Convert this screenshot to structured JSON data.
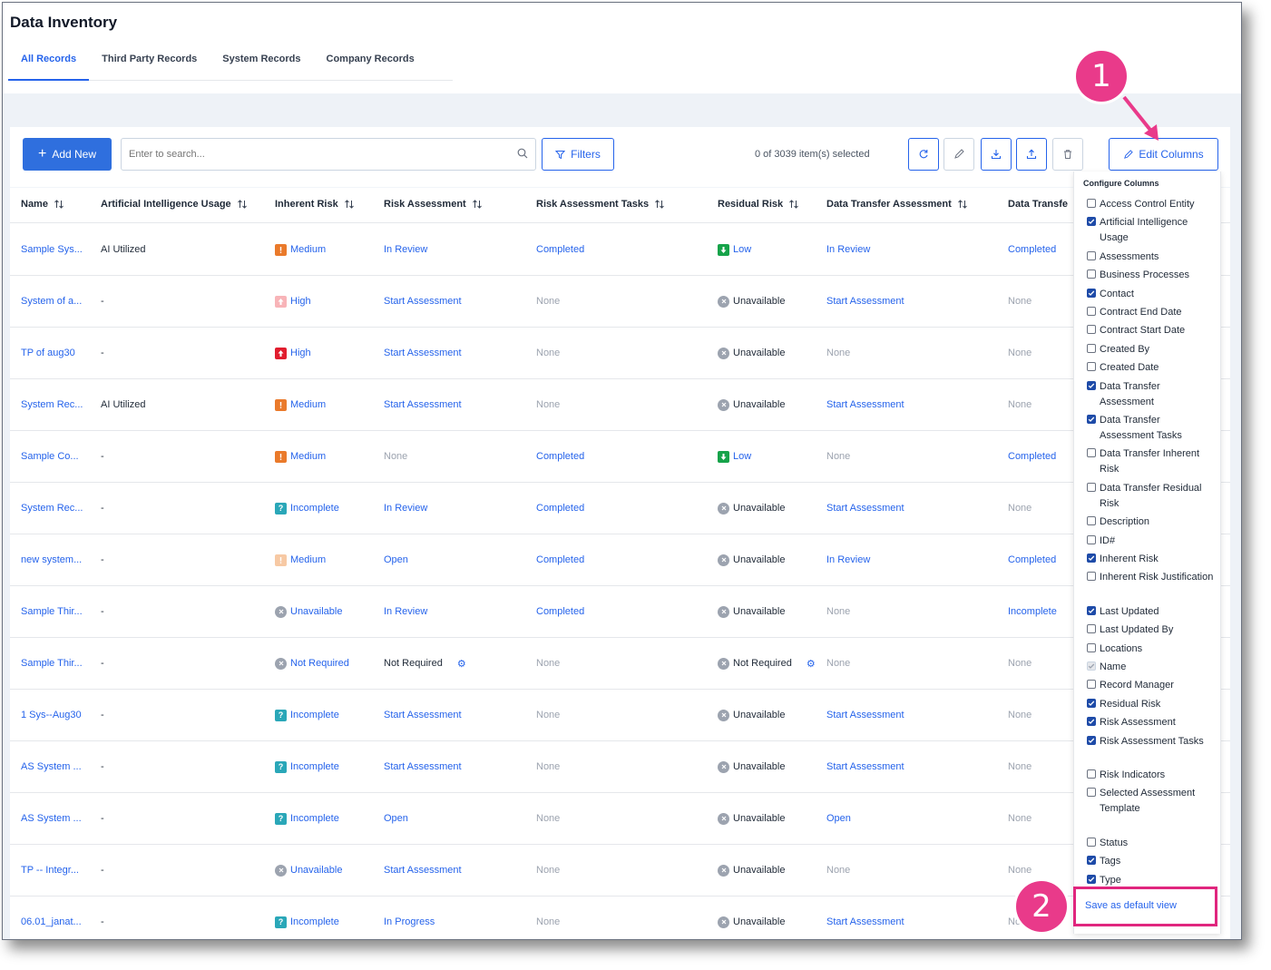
{
  "page": {
    "title": "Data Inventory"
  },
  "tabs": [
    {
      "label": "All Records",
      "active": true
    },
    {
      "label": "Third Party Records",
      "active": false
    },
    {
      "label": "System Records",
      "active": false
    },
    {
      "label": "Company Records",
      "active": false
    }
  ],
  "toolbar": {
    "add_new_label": "Add New",
    "search_placeholder": "Enter to search...",
    "filters_label": "Filters",
    "selection_text": "0 of 3039 item(s) selected",
    "icon_buttons": [
      "refresh-icon",
      "pencil-icon",
      "download-icon",
      "upload-icon",
      "trash-icon"
    ],
    "edit_columns_label": "Edit Columns"
  },
  "columns": [
    "Name",
    "Artificial Intelligence Usage",
    "Inherent Risk",
    "Risk Assessment",
    "Risk Assessment Tasks",
    "Residual Risk",
    "Data Transfer Assessment",
    "Data Transfe"
  ],
  "rows": [
    {
      "name": "Sample Sys...",
      "ai": "AI Utilized",
      "inherent": {
        "label": "Medium",
        "icon": "medium"
      },
      "ra": {
        "label": "In Review",
        "kind": "link"
      },
      "tasks": {
        "label": "Completed",
        "kind": "link"
      },
      "residual": {
        "label": "Low",
        "icon": "low"
      },
      "dta": {
        "label": "In Review",
        "kind": "link"
      },
      "dt": {
        "label": "Completed",
        "kind": "link"
      }
    },
    {
      "name": "System of a...",
      "ai": "-",
      "inherent": {
        "label": "High",
        "icon": "high-light"
      },
      "ra": {
        "label": "Start Assessment",
        "kind": "link"
      },
      "tasks": {
        "label": "None",
        "kind": "muted"
      },
      "residual": {
        "label": "Unavailable",
        "icon": "unavailable"
      },
      "dta": {
        "label": "Start Assessment",
        "kind": "link"
      },
      "dt": {
        "label": "None",
        "kind": "muted"
      }
    },
    {
      "name": "TP of aug30",
      "ai": "-",
      "inherent": {
        "label": "High",
        "icon": "high"
      },
      "ra": {
        "label": "Start Assessment",
        "kind": "link"
      },
      "tasks": {
        "label": "None",
        "kind": "muted"
      },
      "residual": {
        "label": "Unavailable",
        "icon": "unavailable"
      },
      "dta": {
        "label": "None",
        "kind": "muted"
      },
      "dt": {
        "label": "None",
        "kind": "muted"
      }
    },
    {
      "name": "System Rec...",
      "ai": "AI Utilized",
      "inherent": {
        "label": "Medium",
        "icon": "medium"
      },
      "ra": {
        "label": "Start Assessment",
        "kind": "link"
      },
      "tasks": {
        "label": "None",
        "kind": "muted"
      },
      "residual": {
        "label": "Unavailable",
        "icon": "unavailable"
      },
      "dta": {
        "label": "Start Assessment",
        "kind": "link"
      },
      "dt": {
        "label": "None",
        "kind": "muted"
      }
    },
    {
      "name": "Sample Co...",
      "ai": "-",
      "inherent": {
        "label": "Medium",
        "icon": "medium"
      },
      "ra": {
        "label": "None",
        "kind": "muted"
      },
      "tasks": {
        "label": "Completed",
        "kind": "link"
      },
      "residual": {
        "label": "Low",
        "icon": "low"
      },
      "dta": {
        "label": "None",
        "kind": "muted"
      },
      "dt": {
        "label": "Completed",
        "kind": "link"
      }
    },
    {
      "name": "System Rec...",
      "ai": "-",
      "inherent": {
        "label": "Incomplete",
        "icon": "incomplete"
      },
      "ra": {
        "label": "In Review",
        "kind": "link"
      },
      "tasks": {
        "label": "Completed",
        "kind": "link"
      },
      "residual": {
        "label": "Unavailable",
        "icon": "unavailable"
      },
      "dta": {
        "label": "Start Assessment",
        "kind": "link"
      },
      "dt": {
        "label": "None",
        "kind": "muted"
      }
    },
    {
      "name": "new system...",
      "ai": "-",
      "inherent": {
        "label": "Medium",
        "icon": "medium-light"
      },
      "ra": {
        "label": "Open",
        "kind": "link"
      },
      "tasks": {
        "label": "Completed",
        "kind": "link"
      },
      "residual": {
        "label": "Unavailable",
        "icon": "unavailable"
      },
      "dta": {
        "label": "In Review",
        "kind": "link"
      },
      "dt": {
        "label": "Completed",
        "kind": "link"
      }
    },
    {
      "name": "Sample Thir...",
      "ai": "-",
      "inherent": {
        "label": "Unavailable",
        "icon": "unavailable"
      },
      "ra": {
        "label": "In Review",
        "kind": "link"
      },
      "tasks": {
        "label": "Completed",
        "kind": "link"
      },
      "residual": {
        "label": "Unavailable",
        "icon": "unavailable"
      },
      "dta": {
        "label": "None",
        "kind": "muted"
      },
      "dt": {
        "label": "Incomplete",
        "kind": "link"
      }
    },
    {
      "name": "Sample Thir...",
      "ai": "-",
      "inherent": {
        "label": "Not Required",
        "icon": "unavailable"
      },
      "ra": {
        "label": "Not Required",
        "kind": "plain",
        "gear": true
      },
      "tasks": {
        "label": "None",
        "kind": "muted"
      },
      "residual": {
        "label": "Not Required",
        "icon": "unavailable",
        "gear": true
      },
      "dta": {
        "label": "None",
        "kind": "muted"
      },
      "dt": {
        "label": "None",
        "kind": "muted"
      }
    },
    {
      "name": "1 Sys--Aug30",
      "ai": "-",
      "inherent": {
        "label": "Incomplete",
        "icon": "incomplete"
      },
      "ra": {
        "label": "Start Assessment",
        "kind": "link"
      },
      "tasks": {
        "label": "None",
        "kind": "muted"
      },
      "residual": {
        "label": "Unavailable",
        "icon": "unavailable"
      },
      "dta": {
        "label": "Start Assessment",
        "kind": "link"
      },
      "dt": {
        "label": "None",
        "kind": "muted"
      }
    },
    {
      "name": "AS System ...",
      "ai": "-",
      "inherent": {
        "label": "Incomplete",
        "icon": "incomplete"
      },
      "ra": {
        "label": "Start Assessment",
        "kind": "link"
      },
      "tasks": {
        "label": "None",
        "kind": "muted"
      },
      "residual": {
        "label": "Unavailable",
        "icon": "unavailable"
      },
      "dta": {
        "label": "Start Assessment",
        "kind": "link"
      },
      "dt": {
        "label": "None",
        "kind": "muted"
      }
    },
    {
      "name": "AS System ...",
      "ai": "-",
      "inherent": {
        "label": "Incomplete",
        "icon": "incomplete"
      },
      "ra": {
        "label": "Open",
        "kind": "link"
      },
      "tasks": {
        "label": "None",
        "kind": "muted"
      },
      "residual": {
        "label": "Unavailable",
        "icon": "unavailable"
      },
      "dta": {
        "label": "Open",
        "kind": "link"
      },
      "dt": {
        "label": "None",
        "kind": "muted"
      }
    },
    {
      "name": "TP -- Integr...",
      "ai": "-",
      "inherent": {
        "label": "Unavailable",
        "icon": "unavailable"
      },
      "ra": {
        "label": "Start Assessment",
        "kind": "link"
      },
      "tasks": {
        "label": "None",
        "kind": "muted"
      },
      "residual": {
        "label": "Unavailable",
        "icon": "unavailable"
      },
      "dta": {
        "label": "None",
        "kind": "muted"
      },
      "dt": {
        "label": "None",
        "kind": "muted"
      }
    },
    {
      "name": "06.01_janat...",
      "ai": "-",
      "inherent": {
        "label": "Incomplete",
        "icon": "incomplete"
      },
      "ra": {
        "label": "In Progress",
        "kind": "link"
      },
      "tasks": {
        "label": "None",
        "kind": "muted"
      },
      "residual": {
        "label": "Unavailable",
        "icon": "unavailable"
      },
      "dta": {
        "label": "Start Assessment",
        "kind": "link"
      },
      "dt": {
        "label": "No",
        "kind": "muted"
      }
    }
  ],
  "configure_columns": {
    "title": "Configure Columns",
    "options": [
      {
        "label": "Access Control Entity",
        "checked": false
      },
      {
        "label": "Artificial Intelligence Usage",
        "checked": true
      },
      {
        "label": "Assessments",
        "checked": false
      },
      {
        "label": "Business Processes",
        "checked": false
      },
      {
        "label": "Contact",
        "checked": true
      },
      {
        "label": "Contract End Date",
        "checked": false
      },
      {
        "label": "Contract Start Date",
        "checked": false
      },
      {
        "label": "Created By",
        "checked": false
      },
      {
        "label": "Created Date",
        "checked": false
      },
      {
        "label": "Data Transfer Assessment",
        "checked": true
      },
      {
        "label": "Data Transfer Assessment Tasks",
        "checked": true
      },
      {
        "label": "Data Transfer Inherent Risk",
        "checked": false
      },
      {
        "label": "Data Transfer Residual Risk",
        "checked": false
      },
      {
        "label": "Description",
        "checked": false
      },
      {
        "label": "ID#",
        "checked": false
      },
      {
        "label": "Inherent Risk",
        "checked": true
      },
      {
        "label": "Inherent Risk Justification",
        "checked": false
      },
      {
        "label": "Last Updated",
        "checked": true
      },
      {
        "label": "Last Updated By",
        "checked": false
      },
      {
        "label": "Locations",
        "checked": false
      },
      {
        "label": "Name",
        "checked": true,
        "disabled": true
      },
      {
        "label": "Record Manager",
        "checked": false
      },
      {
        "label": "Residual Risk",
        "checked": true
      },
      {
        "label": "Risk Assessment",
        "checked": true
      },
      {
        "label": "Risk Assessment Tasks",
        "checked": true
      },
      {
        "label": "Risk Indicators",
        "checked": false
      },
      {
        "label": "Selected Assessment Template",
        "checked": false
      },
      {
        "label": "Status",
        "checked": false
      },
      {
        "label": "Tags",
        "checked": true
      },
      {
        "label": "Type",
        "checked": true
      }
    ],
    "save_default_label": "Save as default view"
  },
  "callouts": {
    "one": "1",
    "two": "2"
  },
  "colors": {
    "accent": "#2563eb",
    "callout": "#e93a8a",
    "medium": "#ea7a2b",
    "high": "#e11d2e",
    "low": "#16a34a",
    "unavailable": "#9ca3af",
    "incomplete": "#2aa7b8"
  }
}
